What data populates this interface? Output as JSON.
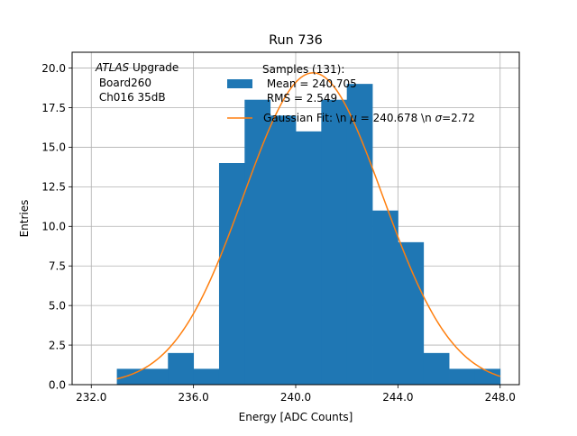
{
  "chart_data": {
    "type": "bar",
    "title": "Run 736",
    "xlabel": "Energy [ADC Counts]",
    "ylabel": "Entries",
    "xlim": [
      231.25,
      248.75
    ],
    "ylim": [
      0,
      21
    ],
    "grid": true,
    "x_ticks": [
      232,
      236,
      240,
      244,
      248
    ],
    "x_tick_labels": [
      "232.0",
      "236.0",
      "240.0",
      "244.0",
      "248.0"
    ],
    "y_ticks": [
      0,
      2.5,
      5,
      7.5,
      10,
      12.5,
      15,
      17.5,
      20
    ],
    "y_tick_labels": [
      "0.0",
      "2.5",
      "5.0",
      "7.5",
      "10.0",
      "12.5",
      "15.0",
      "17.5",
      "20.0"
    ],
    "bin_edges": [
      233,
      234,
      235,
      236,
      237,
      238,
      239,
      240,
      241,
      242,
      243,
      244,
      245,
      246,
      247,
      248
    ],
    "values": [
      1,
      1,
      2,
      1,
      14,
      18,
      17,
      16,
      18,
      19,
      11,
      9,
      2,
      1,
      1
    ],
    "fit": {
      "type": "gaussian",
      "mu": 240.678,
      "sigma": 2.72,
      "amplitude": 19.7,
      "x_range": [
        233,
        248
      ]
    },
    "annotation": {
      "italic": "ATLAS",
      "line1_rest": " Upgrade",
      "line2": " Board260",
      "line3": " Ch016 35dB"
    },
    "legend": {
      "placement": "upper-right",
      "title": "Samples (131):",
      "hist_label": [
        " Mean = 240.705",
        " RMS = 2.549"
      ],
      "fit_prefix": "Gaussian Fit: \\n ",
      "fit_mu_symbol": "μ",
      "fit_mid": " = 240.678 \\n ",
      "fit_sigma_symbol": "σ",
      "fit_suffix": "=2.72"
    },
    "colors": {
      "hist": "#1f77b4",
      "fit": "#ff7f0e",
      "grid": "#b0b0b0"
    }
  }
}
